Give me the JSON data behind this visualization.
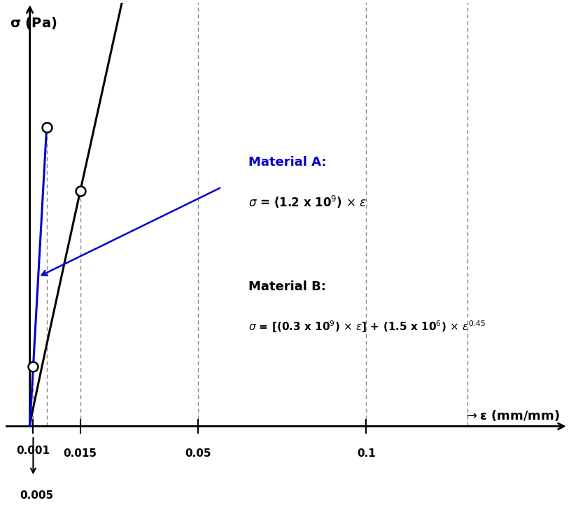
{
  "background_color": "#ffffff",
  "mat_A_color": "#0000cc",
  "mat_B_color": "#000000",
  "A_coeff": 1200000000.0,
  "B_coeff1": 300000000.0,
  "B_coeff2": 1500000.0,
  "B_exp": 0.45,
  "A_points_eps": [
    0.001,
    0.005
  ],
  "B_points_eps": [
    0.015,
    0.05,
    0.1,
    0.13
  ],
  "xlim": [
    -0.008,
    0.16
  ],
  "ylim": [
    -1400000.0,
    8500000.0
  ],
  "figsize": [
    8.16,
    7.22
  ],
  "dpi": 100,
  "xlabel": "ε (mm/mm)",
  "ylabel": "σ (Pa)",
  "mat_A_title": "Material A:",
  "mat_B_title": "Material B:"
}
